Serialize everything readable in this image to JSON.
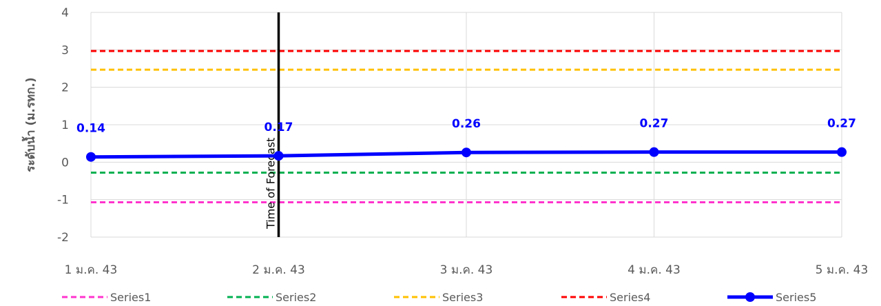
{
  "chart_data": {
    "type": "line",
    "title": "",
    "xlabel": "",
    "ylabel": "ระดับน้ำ (ม.รทก.)",
    "categories": [
      "1 ม.ค. 43",
      "2 ม.ค. 43",
      "3 ม.ค. 43",
      "4 ม.ค. 43",
      "5 ม.ค. 43"
    ],
    "ylim": [
      -2,
      4
    ],
    "yticks": [
      "-2",
      "-1",
      "0",
      "1",
      "2",
      "3",
      "4"
    ],
    "grid": true,
    "legend_position": "bottom",
    "series": [
      {
        "name": "Series1",
        "values": [
          -1.07,
          -1.07,
          -1.07,
          -1.07,
          -1.07
        ],
        "color": "#ff33cc",
        "style": "dashed"
      },
      {
        "name": "Series2",
        "values": [
          -0.28,
          -0.28,
          -0.28,
          -0.28,
          -0.28
        ],
        "color": "#00b050",
        "style": "dashed"
      },
      {
        "name": "Series3",
        "values": [
          2.47,
          2.47,
          2.47,
          2.47,
          2.47
        ],
        "color": "#ffc000",
        "style": "dashed"
      },
      {
        "name": "Series4",
        "values": [
          2.97,
          2.97,
          2.97,
          2.97,
          2.97
        ],
        "color": "#ff0000",
        "style": "dashed"
      },
      {
        "name": "Series5",
        "values": [
          0.14,
          0.17,
          0.26,
          0.27,
          0.27
        ],
        "color": "#0000ff",
        "style": "solid-markers",
        "data_labels": [
          "0.14",
          "0.17",
          "0.26",
          "0.27",
          "0.27"
        ]
      }
    ],
    "annotation": {
      "label": "Time of Forecast",
      "category": "2 ม.ค. 43",
      "color": "#000000"
    }
  }
}
